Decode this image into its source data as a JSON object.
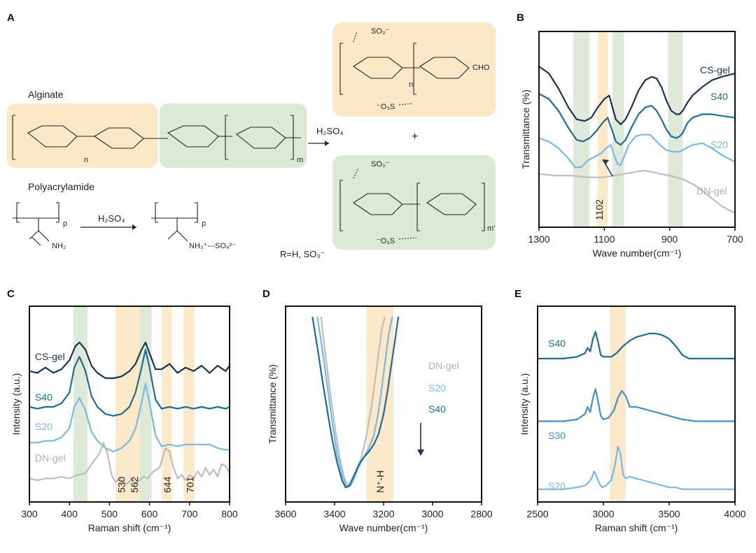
{
  "panels": {
    "A": {
      "label": "A",
      "alginate_title": "Alginate",
      "polyacrylamide_title": "Polyacrylamide",
      "reagent_top": "H₂SO₄",
      "reagent_bottom": "H₂SO₄",
      "plus": "+",
      "r_group": "R=H, SO₃⁻",
      "chem_labels": {
        "sub_n": "n",
        "sub_m": "m",
        "sub_n_prime": "n'",
        "sub_m_prime": "m'",
        "sub_p": "p",
        "sub_p2": "p",
        "nh2": "NH₂",
        "nh3": "NH₃⁺---SO₄²⁻",
        "cho": "CHO",
        "so3_1": "SO₃⁻",
        "so3_2": "SO₃⁻",
        "so3_o_1": "⁻O₃S",
        "so3_o_2": "⁻O₃S"
      }
    },
    "B": {
      "label": "B",
      "highlight": "1102"
    },
    "C": {
      "label": "C"
    },
    "D": {
      "label": "D",
      "highlight": "N⁺-H"
    },
    "E": {
      "label": "E"
    }
  },
  "colors": {
    "cs_gel": "#1a3352",
    "s40": "#1e6b93",
    "s30": "#4a8dc0",
    "s20": "#7ab8e4",
    "dn_gel": "#bdbdbd",
    "green_band": "#dce9d5",
    "orange_band": "#fbe8c6"
  },
  "chart_data": [
    {
      "id": "B",
      "type": "line",
      "xlabel": "Wave number(cm⁻¹)",
      "ylabel": "Transmittance (%)",
      "xlim": [
        1300,
        700
      ],
      "x_reversed": true,
      "xticks": [
        1300,
        1100,
        900,
        700
      ],
      "xtick_labels": [
        "1300",
        "1100",
        "900",
        "700"
      ],
      "bands": [
        {
          "from": 1195,
          "to": 1145,
          "color": "green"
        },
        {
          "from": 1120,
          "to": 1090,
          "color": "orange",
          "label": "1102"
        },
        {
          "from": 1075,
          "to": 1040,
          "color": "green"
        },
        {
          "from": 905,
          "to": 860,
          "color": "green"
        }
      ],
      "series": [
        {
          "name": "CS-gel",
          "x": [
            1300,
            1270,
            1240,
            1210,
            1185,
            1160,
            1140,
            1120,
            1100,
            1085,
            1075,
            1065,
            1050,
            1035,
            1015,
            995,
            975,
            955,
            940,
            925,
            910,
            895,
            880,
            870,
            860,
            845,
            830,
            800,
            770,
            740,
            700
          ],
          "y": [
            0.86,
            0.82,
            0.73,
            0.62,
            0.55,
            0.54,
            0.56,
            0.62,
            0.67,
            0.69,
            0.62,
            0.55,
            0.52,
            0.55,
            0.63,
            0.72,
            0.78,
            0.8,
            0.79,
            0.74,
            0.66,
            0.6,
            0.58,
            0.58,
            0.6,
            0.65,
            0.69,
            0.74,
            0.78,
            0.8,
            0.82
          ]
        },
        {
          "name": "S40",
          "x": [
            1300,
            1270,
            1240,
            1210,
            1185,
            1165,
            1145,
            1125,
            1105,
            1090,
            1075,
            1065,
            1050,
            1035,
            1015,
            995,
            975,
            955,
            940,
            925,
            910,
            895,
            880,
            870,
            860,
            845,
            830,
            800,
            770,
            740,
            700
          ],
          "y": [
            0.7,
            0.67,
            0.6,
            0.5,
            0.43,
            0.42,
            0.44,
            0.48,
            0.53,
            0.56,
            0.48,
            0.42,
            0.4,
            0.43,
            0.51,
            0.58,
            0.62,
            0.63,
            0.6,
            0.55,
            0.49,
            0.45,
            0.44,
            0.45,
            0.47,
            0.53,
            0.56,
            0.58,
            0.58,
            0.57,
            0.56
          ]
        },
        {
          "name": "S20",
          "x": [
            1300,
            1270,
            1240,
            1210,
            1190,
            1170,
            1150,
            1130,
            1110,
            1095,
            1080,
            1070,
            1060,
            1050,
            1040,
            1025,
            1005,
            985,
            960,
            945,
            930,
            910,
            890,
            870,
            850,
            830,
            800,
            770,
            740,
            700
          ],
          "y": [
            0.44,
            0.42,
            0.38,
            0.32,
            0.27,
            0.27,
            0.31,
            0.33,
            0.35,
            0.38,
            0.4,
            0.34,
            0.29,
            0.28,
            0.33,
            0.4,
            0.45,
            0.46,
            0.46,
            0.43,
            0.4,
            0.37,
            0.36,
            0.36,
            0.38,
            0.4,
            0.41,
            0.38,
            0.34,
            0.3
          ]
        },
        {
          "name": "DN-gel",
          "x": [
            1300,
            1250,
            1200,
            1150,
            1100,
            1070,
            1040,
            1010,
            980,
            950,
            930,
            900,
            860,
            820,
            780,
            740,
            700
          ],
          "y": [
            0.23,
            0.22,
            0.22,
            0.21,
            0.21,
            0.22,
            0.23,
            0.24,
            0.25,
            0.24,
            0.23,
            0.22,
            0.2,
            0.16,
            0.1,
            0.04,
            0.0
          ]
        }
      ]
    },
    {
      "id": "C",
      "type": "line",
      "xlabel": "Raman shift (cm⁻¹)",
      "ylabel": "Intensity (a.u.)",
      "xlim": [
        300,
        800
      ],
      "xticks": [
        300,
        400,
        500,
        600,
        700,
        800
      ],
      "xtick_labels": [
        "300",
        "400",
        "500",
        "600",
        "700",
        "800"
      ],
      "bands": [
        {
          "from": 410,
          "to": 445,
          "color": "green"
        },
        {
          "from": 515,
          "to": 575,
          "color": "orange",
          "label": "530"
        },
        {
          "from": 575,
          "to": 605,
          "color": "green"
        },
        {
          "from": 630,
          "to": 655,
          "color": "orange",
          "label": "644"
        },
        {
          "from": 685,
          "to": 712,
          "color": "orange",
          "label": "701"
        }
      ],
      "band_labels": [
        {
          "x": 530,
          "text": "530"
        },
        {
          "x": 562,
          "text": "562"
        },
        {
          "x": 644,
          "text": "644"
        },
        {
          "x": 701,
          "text": "701"
        }
      ],
      "series": [
        {
          "name": "CS-gel",
          "x": [
            300,
            320,
            340,
            360,
            380,
            400,
            415,
            425,
            440,
            455,
            470,
            490,
            510,
            530,
            550,
            565,
            580,
            590,
            600,
            615,
            630,
            650,
            670,
            690,
            710,
            730,
            750,
            770,
            790,
            800
          ],
          "y": [
            0.7,
            0.69,
            0.72,
            0.69,
            0.71,
            0.76,
            0.84,
            0.86,
            0.82,
            0.73,
            0.69,
            0.66,
            0.66,
            0.67,
            0.7,
            0.74,
            0.82,
            0.86,
            0.8,
            0.71,
            0.71,
            0.74,
            0.69,
            0.72,
            0.7,
            0.73,
            0.69,
            0.73,
            0.7,
            0.73
          ]
        },
        {
          "name": "S40",
          "x": [
            300,
            320,
            340,
            360,
            380,
            400,
            412,
            425,
            440,
            455,
            470,
            490,
            510,
            530,
            550,
            565,
            580,
            590,
            600,
            615,
            630,
            650,
            670,
            690,
            710,
            730,
            750,
            770,
            790,
            800
          ],
          "y": [
            0.5,
            0.49,
            0.5,
            0.5,
            0.52,
            0.58,
            0.72,
            0.78,
            0.7,
            0.56,
            0.5,
            0.46,
            0.45,
            0.46,
            0.5,
            0.58,
            0.72,
            0.82,
            0.72,
            0.54,
            0.49,
            0.5,
            0.49,
            0.5,
            0.49,
            0.5,
            0.49,
            0.5,
            0.49,
            0.5
          ]
        },
        {
          "name": "S20",
          "x": [
            300,
            320,
            340,
            360,
            380,
            400,
            412,
            425,
            440,
            455,
            470,
            490,
            510,
            530,
            550,
            565,
            580,
            590,
            600,
            615,
            630,
            650,
            670,
            690,
            710,
            730,
            750,
            770,
            790,
            800
          ],
          "y": [
            0.3,
            0.3,
            0.31,
            0.31,
            0.33,
            0.38,
            0.5,
            0.55,
            0.48,
            0.36,
            0.31,
            0.27,
            0.25,
            0.27,
            0.31,
            0.38,
            0.52,
            0.63,
            0.52,
            0.34,
            0.28,
            0.29,
            0.28,
            0.29,
            0.29,
            0.29,
            0.29,
            0.27,
            0.26,
            0.26
          ]
        },
        {
          "name": "DN-gel",
          "x": [
            300,
            320,
            340,
            360,
            380,
            400,
            420,
            440,
            455,
            465,
            475,
            485,
            495,
            505,
            515,
            525,
            535,
            545,
            555,
            565,
            575,
            585,
            595,
            610,
            625,
            640,
            650,
            660,
            670,
            680,
            690,
            700,
            710,
            720,
            730,
            740,
            750,
            760,
            770,
            780,
            790,
            800
          ],
          "y": [
            0.1,
            0.09,
            0.1,
            0.1,
            0.11,
            0.1,
            0.12,
            0.13,
            0.18,
            0.21,
            0.24,
            0.3,
            0.24,
            0.12,
            0.08,
            0.1,
            0.08,
            0.07,
            0.1,
            0.07,
            0.09,
            0.11,
            0.1,
            0.14,
            0.16,
            0.27,
            0.25,
            0.16,
            0.1,
            0.12,
            0.09,
            0.12,
            0.1,
            0.14,
            0.11,
            0.16,
            0.12,
            0.15,
            0.11,
            0.18,
            0.17,
            0.13
          ]
        }
      ]
    },
    {
      "id": "D",
      "type": "line",
      "xlabel": "Wave number(cm⁻¹)",
      "ylabel": "Transmittance (%)",
      "xlim": [
        3600,
        2800
      ],
      "x_reversed": true,
      "xticks": [
        3600,
        3400,
        3200,
        3000,
        2800
      ],
      "xtick_labels": [
        "3600",
        "3400",
        "3200",
        "3000",
        "2800"
      ],
      "bands": [
        {
          "from": 3270,
          "to": 3160,
          "color": "orange",
          "label": "N⁺-H"
        }
      ],
      "arrow_note": "decreasing",
      "series": [
        {
          "name": "DN-gel",
          "x": [
            3455,
            3440,
            3420,
            3400,
            3380,
            3360,
            3345,
            3330,
            3310,
            3290,
            3270,
            3250,
            3230,
            3215,
            3205,
            3195
          ],
          "y": [
            1.0,
            0.82,
            0.6,
            0.4,
            0.22,
            0.1,
            0.06,
            0.08,
            0.14,
            0.22,
            0.34,
            0.5,
            0.7,
            0.86,
            0.95,
            1.0
          ]
        },
        {
          "name": "S20",
          "x": [
            3470,
            3450,
            3430,
            3410,
            3390,
            3370,
            3350,
            3335,
            3320,
            3300,
            3280,
            3260,
            3240,
            3225,
            3210,
            3195,
            3180,
            3165
          ],
          "y": [
            1.0,
            0.82,
            0.62,
            0.42,
            0.24,
            0.12,
            0.05,
            0.06,
            0.1,
            0.17,
            0.22,
            0.27,
            0.34,
            0.44,
            0.58,
            0.74,
            0.9,
            1.0
          ]
        },
        {
          "name": "S40",
          "x": [
            3490,
            3470,
            3450,
            3430,
            3410,
            3390,
            3370,
            3355,
            3340,
            3320,
            3300,
            3280,
            3260,
            3240,
            3220,
            3200,
            3185,
            3170,
            3155,
            3140
          ],
          "y": [
            1.0,
            0.83,
            0.65,
            0.48,
            0.32,
            0.19,
            0.09,
            0.05,
            0.06,
            0.12,
            0.18,
            0.22,
            0.25,
            0.29,
            0.35,
            0.46,
            0.58,
            0.72,
            0.86,
            1.0
          ]
        }
      ]
    },
    {
      "id": "E",
      "type": "line",
      "xlabel": "Raman shift (cm⁻¹)",
      "ylabel": "Intensity (a.u.)",
      "xlim": [
        2500,
        4000
      ],
      "xticks": [
        2500,
        3000,
        3500,
        4000
      ],
      "xtick_labels": [
        "2500",
        "3000",
        "3500",
        "4000"
      ],
      "bands": [
        {
          "from": 3050,
          "to": 3170,
          "color": "orange"
        }
      ],
      "series": [
        {
          "name": "S40",
          "x": [
            2500,
            2600,
            2700,
            2800,
            2860,
            2880,
            2900,
            2920,
            2940,
            2960,
            2980,
            3000,
            3020,
            3060,
            3100,
            3150,
            3200,
            3250,
            3300,
            3350,
            3400,
            3450,
            3500,
            3550,
            3600,
            3650,
            3700,
            3800,
            3900,
            4000
          ],
          "y": [
            0.77,
            0.77,
            0.77,
            0.78,
            0.8,
            0.83,
            0.81,
            0.88,
            0.92,
            0.86,
            0.79,
            0.78,
            0.78,
            0.78,
            0.8,
            0.84,
            0.87,
            0.89,
            0.9,
            0.91,
            0.91,
            0.9,
            0.88,
            0.84,
            0.79,
            0.77,
            0.77,
            0.77,
            0.77,
            0.77
          ]
        },
        {
          "name": "S30",
          "x": [
            2500,
            2600,
            2700,
            2800,
            2860,
            2880,
            2900,
            2920,
            2940,
            2960,
            2980,
            3000,
            3040,
            3080,
            3110,
            3140,
            3170,
            3200,
            3250,
            3300,
            3350,
            3400,
            3450,
            3500,
            3550,
            3600,
            3700,
            3800,
            3900,
            4000
          ],
          "y": [
            0.42,
            0.42,
            0.42,
            0.43,
            0.46,
            0.5,
            0.47,
            0.55,
            0.6,
            0.53,
            0.45,
            0.43,
            0.44,
            0.48,
            0.55,
            0.59,
            0.56,
            0.5,
            0.5,
            0.49,
            0.48,
            0.47,
            0.46,
            0.45,
            0.44,
            0.43,
            0.42,
            0.42,
            0.42,
            0.42
          ]
        },
        {
          "name": "S20",
          "x": [
            2500,
            2600,
            2700,
            2800,
            2860,
            2890,
            2910,
            2930,
            2950,
            2970,
            2990,
            3020,
            3060,
            3090,
            3110,
            3130,
            3150,
            3170,
            3200,
            3250,
            3300,
            3350,
            3400,
            3450,
            3500,
            3550,
            3600,
            3700,
            3800,
            3900,
            4000
          ],
          "y": [
            0.04,
            0.04,
            0.04,
            0.05,
            0.06,
            0.08,
            0.1,
            0.14,
            0.11,
            0.07,
            0.05,
            0.06,
            0.09,
            0.18,
            0.28,
            0.24,
            0.12,
            0.1,
            0.11,
            0.1,
            0.09,
            0.08,
            0.07,
            0.06,
            0.05,
            0.05,
            0.04,
            0.04,
            0.04,
            0.04,
            0.04
          ]
        }
      ]
    }
  ]
}
